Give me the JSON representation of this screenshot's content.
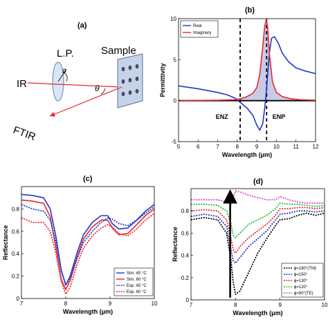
{
  "panels": {
    "a": {
      "label": "(a)",
      "lp": "L.P.",
      "sample": "Sample",
      "ir": "IR",
      "ftir": "FTIR",
      "phi": "φ",
      "theta": "θ"
    },
    "b": {
      "label": "(b)",
      "enz": "ENZ",
      "enp": "ENP"
    },
    "c": {
      "label": "(c)"
    },
    "d": {
      "label": "(d)"
    }
  },
  "colors": {
    "real": "#1f35c8",
    "imag": "#e8262b",
    "shade": "#9aa0d6"
  },
  "chart_data": [
    {
      "id": "b",
      "type": "line",
      "title": "",
      "xlabel": "Wavelength (μm)",
      "ylabel": "Permittivity",
      "xlim": [
        5,
        12
      ],
      "ylim": [
        -5,
        10
      ],
      "xticks": [
        5,
        6,
        7,
        8,
        9,
        10,
        11,
        12
      ],
      "yticks": [
        -5,
        0,
        5,
        10
      ],
      "legend_position": "top-left",
      "vlines": [
        8.15,
        9.5
      ],
      "annotations": [
        "ENZ",
        "ENP"
      ],
      "series": [
        {
          "name": "Real",
          "color": "#1f35c8",
          "x": [
            5,
            6,
            7,
            7.5,
            7.9,
            8.2,
            8.5,
            8.8,
            9.0,
            9.15,
            9.3,
            9.4,
            9.5,
            9.58,
            9.65,
            9.75,
            9.9,
            10.1,
            10.3,
            10.6,
            11.0,
            11.5,
            12
          ],
          "y": [
            1.8,
            1.45,
            1.0,
            0.7,
            0.3,
            -0.3,
            -0.9,
            -1.8,
            -3.0,
            -3.6,
            -2.8,
            -1.0,
            1.5,
            4.0,
            6.0,
            7.6,
            7.8,
            7.0,
            5.8,
            4.8,
            4.0,
            3.6,
            3.3
          ]
        },
        {
          "name": "Imaginary",
          "color": "#e8262b",
          "x": [
            5,
            6,
            7,
            7.8,
            8.2,
            8.5,
            8.8,
            9.0,
            9.15,
            9.3,
            9.4,
            9.48,
            9.55,
            9.65,
            9.8,
            10.0,
            10.3,
            10.7,
            11.2,
            12
          ],
          "y": [
            0.02,
            0.03,
            0.05,
            0.1,
            0.25,
            0.5,
            0.9,
            1.6,
            3.2,
            6.5,
            9.0,
            9.9,
            9.0,
            5.5,
            2.3,
            1.0,
            0.5,
            0.25,
            0.12,
            0.05
          ]
        }
      ]
    },
    {
      "id": "c",
      "type": "line",
      "title": "",
      "xlabel": "Wavelength (μm)",
      "ylabel": "Reflectance",
      "xlim": [
        7,
        10
      ],
      "ylim": [
        0,
        1
      ],
      "xticks": [
        7,
        8,
        9,
        10
      ],
      "yticks": [
        0,
        0.2,
        0.4,
        0.6,
        0.8
      ],
      "legend_position": "bottom-right",
      "series": [
        {
          "name": "Sim. 45 °C",
          "color": "#1f35c8",
          "dash": false,
          "x": [
            7,
            7.25,
            7.5,
            7.65,
            7.78,
            7.9,
            8.0,
            8.1,
            8.25,
            8.4,
            8.6,
            8.8,
            8.95,
            9.05,
            9.2,
            9.4,
            9.6,
            9.8,
            10
          ],
          "y": [
            0.93,
            0.92,
            0.9,
            0.8,
            0.55,
            0.25,
            0.12,
            0.2,
            0.4,
            0.57,
            0.68,
            0.74,
            0.74,
            0.67,
            0.62,
            0.63,
            0.7,
            0.78,
            0.84
          ]
        },
        {
          "name": "Sim. 60 °C",
          "color": "#e8262b",
          "dash": false,
          "x": [
            7,
            7.25,
            7.5,
            7.65,
            7.78,
            7.9,
            8.0,
            8.1,
            8.25,
            8.4,
            8.6,
            8.8,
            8.95,
            9.05,
            9.2,
            9.4,
            9.6,
            9.8,
            10
          ],
          "y": [
            0.88,
            0.87,
            0.85,
            0.73,
            0.45,
            0.17,
            0.08,
            0.16,
            0.36,
            0.53,
            0.64,
            0.7,
            0.7,
            0.63,
            0.57,
            0.58,
            0.66,
            0.74,
            0.8
          ]
        },
        {
          "name": "Exp. 45 °C",
          "color": "#1f35c8",
          "dash": true,
          "x": [
            7,
            7.25,
            7.5,
            7.65,
            7.78,
            7.9,
            8.0,
            8.1,
            8.25,
            8.4,
            8.6,
            8.8,
            8.95,
            9.05,
            9.2,
            9.4,
            9.6,
            9.8,
            10
          ],
          "y": [
            0.84,
            0.8,
            0.78,
            0.7,
            0.5,
            0.25,
            0.12,
            0.18,
            0.35,
            0.5,
            0.6,
            0.68,
            0.72,
            0.71,
            0.67,
            0.65,
            0.7,
            0.76,
            0.82
          ]
        },
        {
          "name": "Exp. 60 °C",
          "color": "#e8262b",
          "dash": true,
          "x": [
            7,
            7.25,
            7.5,
            7.65,
            7.78,
            7.9,
            8.0,
            8.1,
            8.25,
            8.4,
            8.6,
            8.8,
            8.95,
            9.05,
            9.2,
            9.4,
            9.6,
            9.8,
            10
          ],
          "y": [
            0.72,
            0.68,
            0.68,
            0.6,
            0.4,
            0.15,
            0.04,
            0.1,
            0.3,
            0.45,
            0.56,
            0.63,
            0.66,
            0.64,
            0.58,
            0.56,
            0.62,
            0.7,
            0.76
          ]
        }
      ]
    },
    {
      "id": "d",
      "type": "line",
      "title": "",
      "xlabel": "Wavelength (μm)",
      "ylabel": "Reflectance",
      "xlim": [
        7,
        10
      ],
      "ylim": [
        0,
        1
      ],
      "xticks": [
        7,
        8,
        9,
        10
      ],
      "yticks": [
        0,
        0.2,
        0.4,
        0.6,
        0.8
      ],
      "legend_position": "bottom-right",
      "arrow": "upward at 7.9",
      "series": [
        {
          "name": "ϕ=180°(TM)",
          "color": "#000000",
          "x": [
            7,
            7.3,
            7.6,
            7.8,
            7.9,
            7.95,
            8.0,
            8.1,
            8.3,
            8.5,
            8.7,
            8.9,
            9.0,
            9.2,
            9.4,
            9.6,
            9.8,
            10
          ],
          "y": [
            0.72,
            0.74,
            0.72,
            0.6,
            0.35,
            0.15,
            0.05,
            0.08,
            0.25,
            0.42,
            0.55,
            0.67,
            0.72,
            0.73,
            0.76,
            0.78,
            0.76,
            0.78
          ]
        },
        {
          "name": "ϕ=150°",
          "color": "#1f35c8",
          "x": [
            7,
            7.3,
            7.6,
            7.8,
            7.9,
            7.95,
            8.0,
            8.1,
            8.3,
            8.5,
            8.7,
            8.9,
            9.0,
            9.2,
            9.4,
            9.6,
            9.8,
            10
          ],
          "y": [
            0.75,
            0.77,
            0.75,
            0.66,
            0.45,
            0.35,
            0.33,
            0.38,
            0.48,
            0.55,
            0.62,
            0.72,
            0.77,
            0.78,
            0.8,
            0.8,
            0.79,
            0.8
          ]
        },
        {
          "name": "ϕ=130°",
          "color": "#e8262b",
          "x": [
            7,
            7.3,
            7.6,
            7.8,
            7.9,
            7.95,
            8.0,
            8.1,
            8.3,
            8.5,
            8.7,
            8.9,
            9.0,
            9.2,
            9.4,
            9.6,
            9.8,
            10
          ],
          "y": [
            0.8,
            0.81,
            0.8,
            0.72,
            0.55,
            0.45,
            0.42,
            0.48,
            0.56,
            0.62,
            0.68,
            0.76,
            0.82,
            0.82,
            0.83,
            0.83,
            0.82,
            0.83
          ]
        },
        {
          "name": "ϕ=120°",
          "color": "#17c22a",
          "x": [
            7,
            7.3,
            7.6,
            7.8,
            7.9,
            7.95,
            8.0,
            8.1,
            8.3,
            8.5,
            8.7,
            8.9,
            9.0,
            9.2,
            9.4,
            9.6,
            9.8,
            10
          ],
          "y": [
            0.86,
            0.86,
            0.85,
            0.8,
            0.68,
            0.58,
            0.56,
            0.6,
            0.68,
            0.72,
            0.76,
            0.82,
            0.87,
            0.86,
            0.86,
            0.85,
            0.84,
            0.85
          ]
        },
        {
          "name": "ϕ=90°(TE)",
          "color": "#e040e0",
          "x": [
            7,
            7.3,
            7.6,
            7.8,
            7.9,
            7.95,
            8.0,
            8.1,
            8.3,
            8.5,
            8.7,
            8.9,
            9.0,
            9.2,
            9.4,
            9.6,
            9.8,
            10
          ],
          "y": [
            0.9,
            0.9,
            0.9,
            0.88,
            0.86,
            0.92,
            0.98,
            0.97,
            0.94,
            0.92,
            0.9,
            0.9,
            0.93,
            0.9,
            0.88,
            0.87,
            0.87,
            0.87
          ]
        }
      ]
    }
  ]
}
